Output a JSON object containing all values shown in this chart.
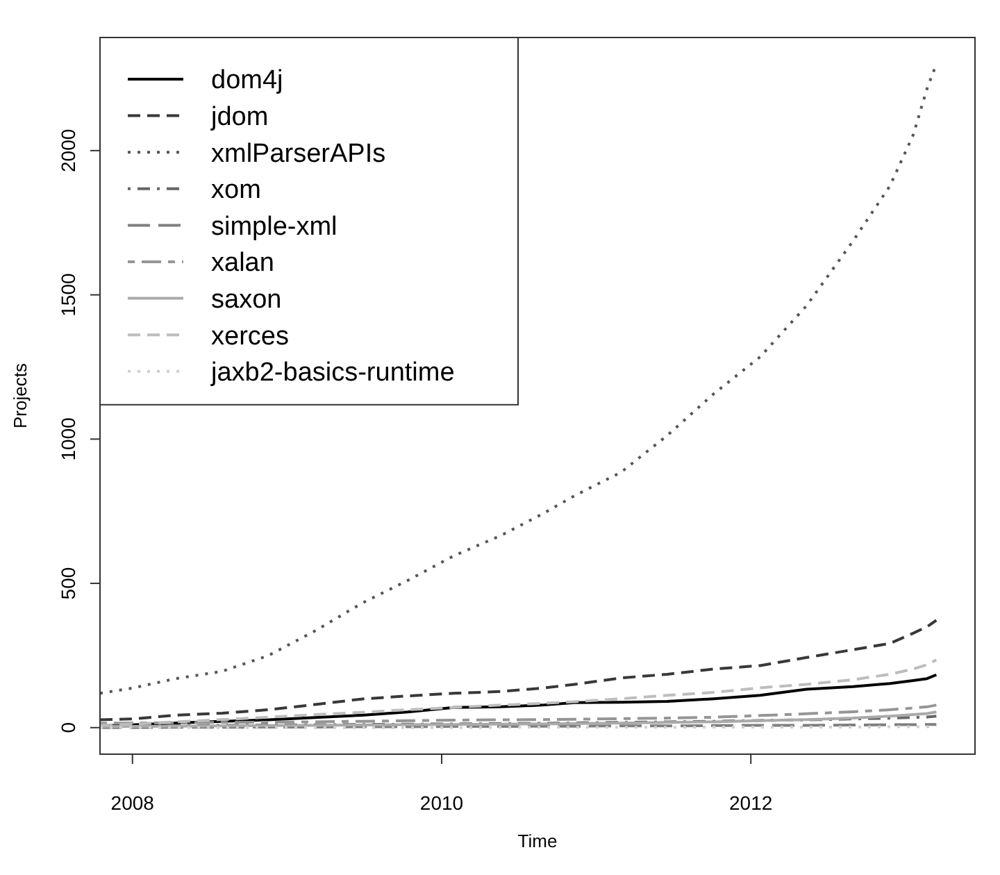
{
  "chart_data": {
    "type": "line",
    "xlabel": "Time",
    "ylabel": "Projects",
    "x": [
      2007.79,
      2008.0,
      2008.28,
      2008.58,
      2008.88,
      2009.18,
      2009.48,
      2009.78,
      2010.08,
      2010.38,
      2010.65,
      2010.86,
      2011.16,
      2011.46,
      2011.76,
      2012.06,
      2012.36,
      2012.66,
      2012.9,
      2013.05,
      2013.14,
      2013.2
    ],
    "xlim": [
      2007.79,
      2013.45
    ],
    "xticks": [
      2008,
      2010,
      2012
    ],
    "ylim": [
      -92,
      2392
    ],
    "yticks": [
      0,
      500,
      1000,
      1500,
      2000
    ],
    "grid": false,
    "legend": "top left",
    "series": [
      {
        "name": "dom4j",
        "color": "#000000",
        "line_style": "solid",
        "values": [
          6,
          10,
          16,
          22,
          27,
          35,
          43,
          54,
          70,
          72,
          78,
          87,
          88,
          91,
          100,
          112,
          133,
          142,
          153,
          163,
          170,
          183
        ]
      },
      {
        "name": "jdom",
        "color": "#383838",
        "line_style": "dashed",
        "values": [
          27,
          30,
          43,
          50,
          62,
          80,
          99,
          110,
          119,
          125,
          137,
          150,
          172,
          185,
          203,
          215,
          243,
          270,
          292,
          327,
          350,
          372
        ]
      },
      {
        "name": "xmlParserAPIs",
        "color": "#555555",
        "line_style": "dotted",
        "values": [
          119,
          137,
          170,
          195,
          250,
          335,
          430,
          510,
          596,
          665,
          740,
          804,
          885,
          1013,
          1157,
          1285,
          1462,
          1686,
          1878,
          2054,
          2215,
          2300
        ]
      },
      {
        "name": "xom",
        "color": "#666666",
        "line_style": "dashdot",
        "values": [
          5,
          6,
          7,
          8,
          9,
          10,
          11,
          12,
          13,
          14,
          15,
          16,
          18,
          20,
          22,
          25,
          27,
          30,
          33,
          35,
          37,
          40
        ]
      },
      {
        "name": "simple-xml",
        "color": "#7f7f7f",
        "line_style": "longdash",
        "values": [
          0,
          0,
          1,
          1,
          2,
          2,
          3,
          3,
          4,
          4,
          5,
          5,
          6,
          6,
          7,
          8,
          8,
          9,
          10,
          10,
          11,
          11
        ]
      },
      {
        "name": "xalan",
        "color": "#959595",
        "line_style": "twodash",
        "values": [
          15,
          16,
          17,
          18,
          19,
          20,
          22,
          24,
          26,
          27,
          28,
          29,
          31,
          33,
          36,
          42,
          48,
          55,
          62,
          68,
          72,
          78
        ]
      },
      {
        "name": "saxon",
        "color": "#aaaaaa",
        "line_style": "solid",
        "values": [
          3,
          4,
          5,
          6,
          7,
          8,
          9,
          10,
          11,
          12,
          13,
          14,
          16,
          18,
          20,
          24,
          28,
          33,
          40,
          45,
          49,
          54
        ]
      },
      {
        "name": "xerces",
        "color": "#bdbdbd",
        "line_style": "dashed",
        "values": [
          8,
          12,
          20,
          28,
          36,
          45,
          53,
          62,
          70,
          78,
          84,
          90,
          100,
          112,
          122,
          138,
          150,
          166,
          185,
          203,
          218,
          235
        ]
      },
      {
        "name": "jaxb2-basics-runtime",
        "color": "#d0d0d0",
        "line_style": "dotted",
        "values": [
          0,
          0,
          0,
          0,
          0,
          0,
          0,
          0,
          0,
          1,
          1,
          1,
          1,
          1,
          2,
          2,
          2,
          2,
          3,
          3,
          3,
          3
        ]
      }
    ]
  }
}
